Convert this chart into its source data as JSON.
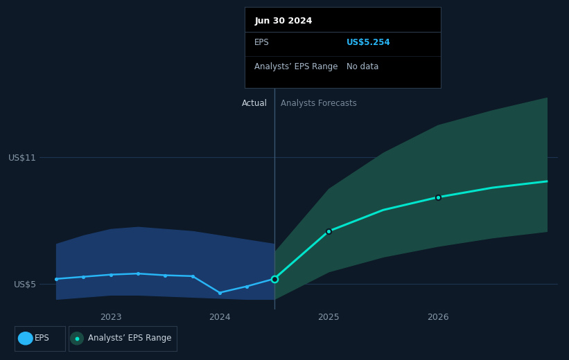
{
  "background_color": "#0d1926",
  "plot_bg_color": "#0d1926",
  "actual_x": [
    2022.5,
    2022.75,
    2023.0,
    2023.25,
    2023.5,
    2023.75,
    2024.0,
    2024.25,
    2024.5
  ],
  "actual_y": [
    5.25,
    5.35,
    5.45,
    5.5,
    5.42,
    5.38,
    4.6,
    4.9,
    5.254
  ],
  "actual_band_upper": [
    6.9,
    7.3,
    7.6,
    7.7,
    7.6,
    7.5,
    7.3,
    7.1,
    6.9
  ],
  "actual_band_lower": [
    4.3,
    4.4,
    4.5,
    4.5,
    4.45,
    4.4,
    4.35,
    4.3,
    4.3
  ],
  "forecast_x": [
    2024.5,
    2025.0,
    2025.5,
    2026.0,
    2026.5,
    2027.0
  ],
  "forecast_y": [
    5.254,
    7.5,
    8.5,
    9.1,
    9.55,
    9.85
  ],
  "forecast_band_upper": [
    6.5,
    9.5,
    11.2,
    12.5,
    13.2,
    13.8
  ],
  "forecast_band_lower": [
    4.3,
    5.6,
    6.3,
    6.8,
    7.2,
    7.5
  ],
  "divider_x": 2024.5,
  "actual_line_color": "#29b6f6",
  "actual_band_color": "#1a3a6b",
  "forecast_line_color": "#00e5cc",
  "forecast_band_color": "#1a4a44",
  "grid_color": "#1e3352",
  "tick_color": "#8899aa",
  "text_color": "#ccd6e0",
  "dim_text_color": "#778899",
  "ytick_labels": [
    "US$5",
    "US$11"
  ],
  "ytick_values": [
    5.0,
    11.0
  ],
  "xtick_labels": [
    "2023",
    "2024",
    "2025",
    "2026"
  ],
  "xtick_values": [
    2023.0,
    2024.0,
    2025.0,
    2026.0
  ],
  "ylim": [
    3.8,
    14.5
  ],
  "xlim": [
    2022.35,
    2027.1
  ],
  "divider_label_actual": "Actual",
  "divider_label_forecast": "Analysts Forecasts",
  "tooltip_title": "Jun 30 2024",
  "tooltip_eps_label": "EPS",
  "tooltip_eps_value": "US$5.254",
  "tooltip_range_label": "Analysts’ EPS Range",
  "tooltip_range_value": "No data",
  "tooltip_bg": "#000000",
  "tooltip_border_color": "#2a3a4a",
  "tooltip_text_color": "#aabbcc",
  "tooltip_value_color": "#29b6f6",
  "legend_items": [
    "EPS",
    "Analysts’ EPS Range"
  ]
}
